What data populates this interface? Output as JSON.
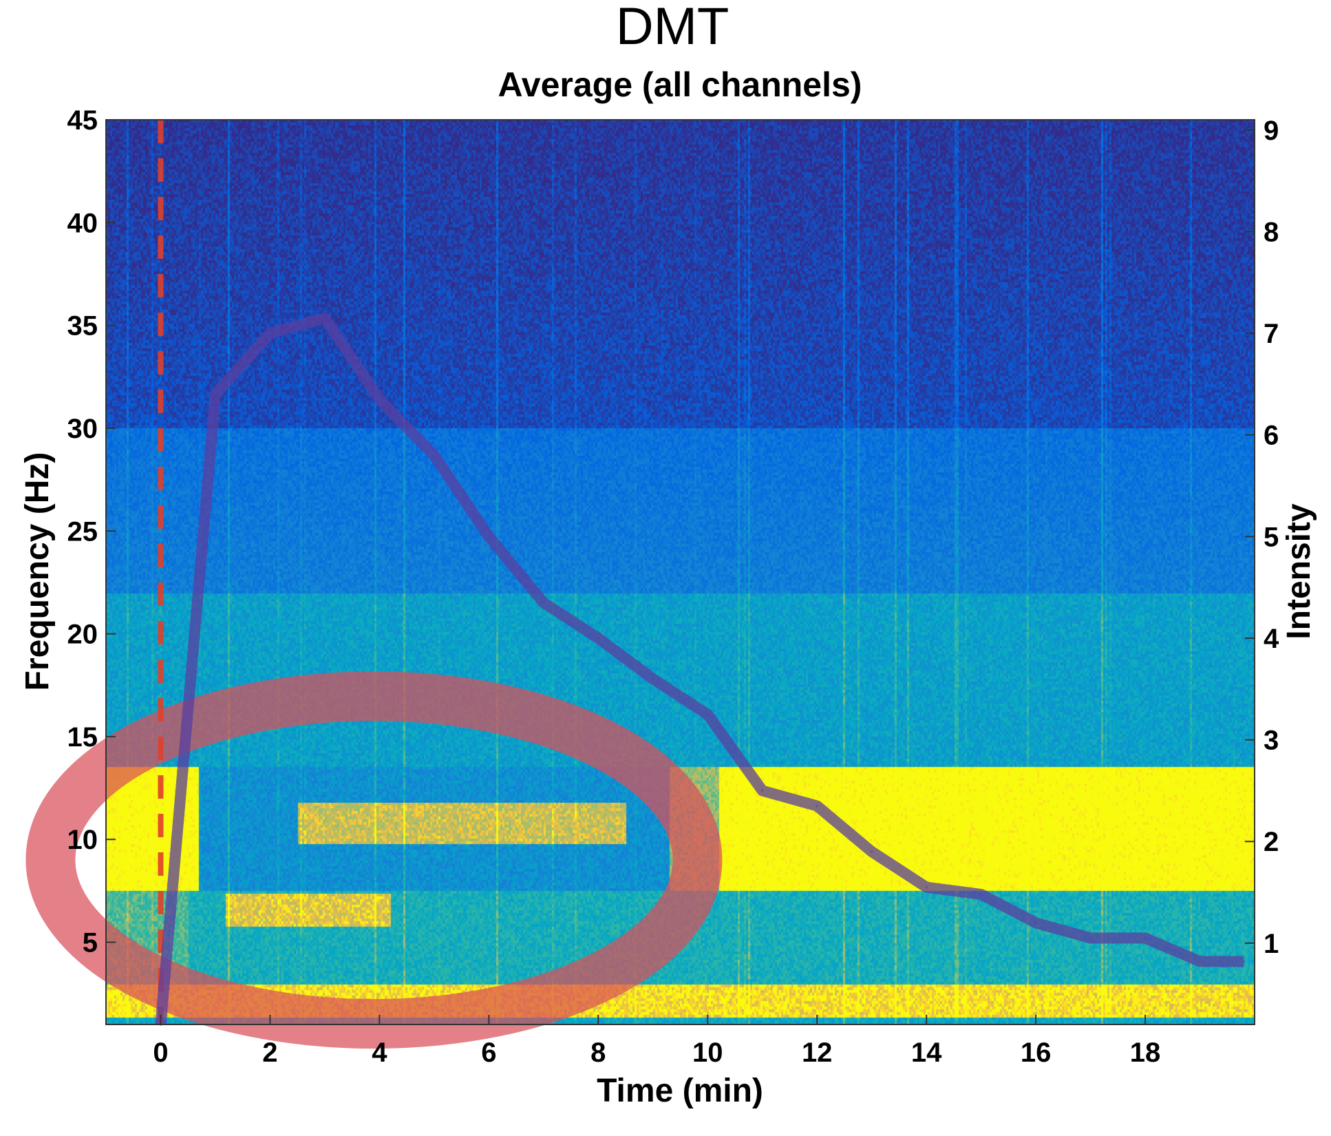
{
  "chart_data": {
    "type": "heatmap",
    "title": "DMT",
    "subtitle": "Average (all channels)",
    "xlabel": "Time (min)",
    "ylabel": "Frequency (Hz)",
    "y2label": "Intensity",
    "xlim": [
      -1,
      20
    ],
    "ylim": [
      1,
      45
    ],
    "y2lim": [
      0.2,
      9.1
    ],
    "xticks": [
      "0",
      "2",
      "4",
      "6",
      "8",
      "10",
      "12",
      "14",
      "16",
      "18"
    ],
    "yticks": [
      "5",
      "10",
      "15",
      "20",
      "25",
      "30",
      "35",
      "40",
      "45"
    ],
    "y2ticks": [
      "1",
      "2",
      "3",
      "4",
      "5",
      "6",
      "7",
      "8",
      "9"
    ],
    "colormap": "parula",
    "heatmap_description_bands": [
      {
        "band_hz": [
          8,
          13
        ],
        "pre_injection_level": "high",
        "during_1_to_10_min_level": "suppressed",
        "after_10_min_level": "high"
      },
      {
        "band_hz": [
          1,
          3
        ],
        "level": "high"
      },
      {
        "band_hz": [
          15,
          22
        ],
        "level": "medium"
      },
      {
        "band_hz": [
          25,
          45
        ],
        "level": "low"
      }
    ],
    "intensity_series": {
      "x": [
        0,
        1,
        2,
        3,
        4,
        5,
        6,
        7,
        8,
        9,
        10,
        11,
        12,
        13,
        14,
        15,
        16,
        17,
        18,
        19,
        19.8
      ],
      "y": [
        0.2,
        6.4,
        7.0,
        7.15,
        6.35,
        5.8,
        5.0,
        4.35,
        4.0,
        3.6,
        3.25,
        2.5,
        2.35,
        1.9,
        1.55,
        1.48,
        1.2,
        1.05,
        1.05,
        0.82,
        0.82
      ],
      "color": "#5a3fa0"
    },
    "injection_marker": {
      "x": 0,
      "style": "dashed",
      "color": "#e0402a"
    },
    "highlight_ellipse": {
      "center_time_min": 3.9,
      "center_freq_hz": 9,
      "color": "#d9505a"
    }
  }
}
